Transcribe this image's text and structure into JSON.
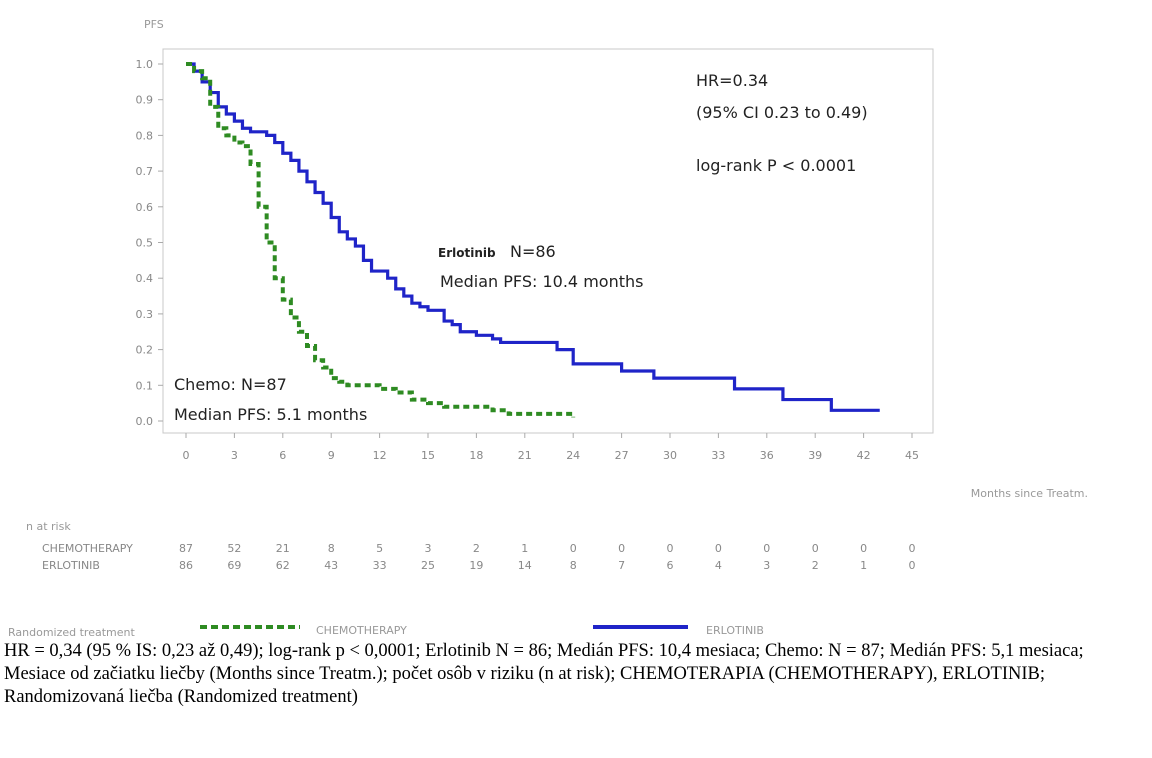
{
  "chart_data": {
    "type": "line",
    "ylabel": "PFS",
    "xlabel": "Months since Treatm.",
    "xlim": [
      0,
      45
    ],
    "ylim": [
      0,
      1.0
    ],
    "x_ticks": [
      0,
      3,
      6,
      9,
      12,
      15,
      18,
      21,
      24,
      27,
      30,
      33,
      36,
      39,
      42,
      45
    ],
    "y_ticks": [
      "0.0",
      "0.1",
      "0.2",
      "0.3",
      "0.4",
      "0.5",
      "0.6",
      "0.7",
      "0.8",
      "0.9",
      "1.0"
    ],
    "series": [
      {
        "name": "ERLOTINIB",
        "color": "#1f24c8",
        "style": "solid",
        "x": [
          0,
          0.5,
          1,
          1.5,
          2,
          2.5,
          3,
          3.5,
          4,
          5,
          5.5,
          6,
          6.5,
          7,
          7.5,
          8,
          8.5,
          9,
          9.5,
          10,
          10.5,
          11,
          11.5,
          12,
          12.5,
          13,
          13.5,
          14,
          14.5,
          15,
          16,
          16.5,
          17,
          18,
          19,
          19.5,
          20,
          22,
          23,
          24,
          26,
          27,
          28,
          29,
          30,
          31,
          32,
          33,
          34,
          35,
          36,
          37,
          38,
          39,
          40,
          41,
          42,
          43
        ],
        "y": [
          1.0,
          0.98,
          0.95,
          0.92,
          0.88,
          0.86,
          0.84,
          0.82,
          0.81,
          0.8,
          0.78,
          0.75,
          0.73,
          0.7,
          0.67,
          0.64,
          0.61,
          0.57,
          0.53,
          0.51,
          0.49,
          0.45,
          0.42,
          0.42,
          0.4,
          0.37,
          0.35,
          0.33,
          0.32,
          0.31,
          0.28,
          0.27,
          0.25,
          0.24,
          0.23,
          0.22,
          0.22,
          0.22,
          0.2,
          0.16,
          0.16,
          0.14,
          0.14,
          0.12,
          0.12,
          0.12,
          0.12,
          0.12,
          0.09,
          0.09,
          0.09,
          0.06,
          0.06,
          0.06,
          0.03,
          0.03,
          0.03,
          0.03
        ]
      },
      {
        "name": "CHEMOTHERAPY",
        "color": "#2e8b22",
        "style": "dashed",
        "x": [
          0,
          0.5,
          1,
          1.5,
          2,
          2.5,
          3,
          3.5,
          4,
          4.5,
          5,
          5.5,
          6,
          6.5,
          7,
          7.5,
          8,
          8.5,
          9,
          9.5,
          10,
          11,
          12,
          13,
          14,
          15,
          16,
          17,
          18,
          19,
          20,
          21,
          22,
          23,
          24
        ],
        "y": [
          1.0,
          0.98,
          0.96,
          0.88,
          0.82,
          0.8,
          0.78,
          0.77,
          0.72,
          0.6,
          0.5,
          0.4,
          0.34,
          0.29,
          0.25,
          0.21,
          0.17,
          0.15,
          0.12,
          0.11,
          0.1,
          0.1,
          0.09,
          0.08,
          0.06,
          0.05,
          0.04,
          0.04,
          0.04,
          0.03,
          0.02,
          0.02,
          0.02,
          0.02,
          0.01
        ]
      }
    ],
    "annotations": {
      "hr": "HR=0.34",
      "ci": "(95% CI 0.23 to 0.49)",
      "logrank": "log-rank P < 0.0001",
      "erlotinib_name": "Erlotinib",
      "erlotinib_n": "N=86",
      "erlotinib_median": "Median PFS: 10.4 months",
      "chemo_n": "Chemo: N=87",
      "chemo_median": "Median PFS: 5.1 months"
    },
    "risk_table": {
      "title": "n at risk",
      "rows": [
        {
          "label": "CHEMOTHERAPY",
          "values": [
            "87",
            "52",
            "21",
            "8",
            "5",
            "3",
            "2",
            "1",
            "0",
            "0",
            "0",
            "0",
            "0",
            "0",
            "0",
            "0"
          ]
        },
        {
          "label": "ERLOTINIB",
          "values": [
            "86",
            "69",
            "62",
            "43",
            "33",
            "25",
            "19",
            "14",
            "8",
            "7",
            "6",
            "4",
            "3",
            "2",
            "1",
            "0"
          ]
        }
      ]
    },
    "legend": {
      "title": "Randomized treatment",
      "items": [
        "CHEMOTHERAPY",
        "ERLOTINIB"
      ],
      "placement": "bottom"
    },
    "grid": false
  },
  "caption": "HR = 0,34 (95 % IS: 0,23 až 0,49); log-rank p < 0,0001; Erlotinib N = 86; Medián PFS: 10,4 mesiaca; Chemo: N = 87; Medián PFS: 5,1 mesiaca; Mesiace od začiatku liečby (Months since Treatm.); počet osôb v riziku (n at risk); CHEMOTERAPIA (CHEMOTHERAPY), ERLOTINIB; Randomizovaná liečba (Randomized treatment)"
}
